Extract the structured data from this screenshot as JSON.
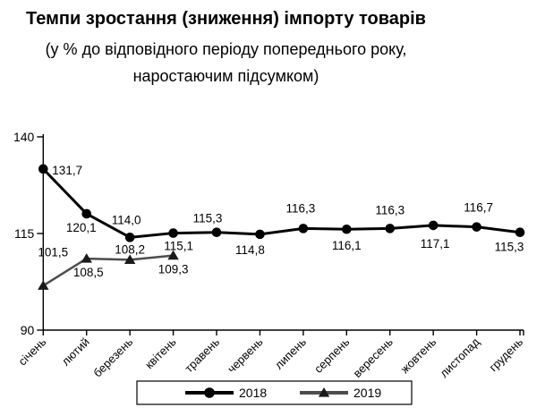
{
  "chart_data": {
    "type": "line",
    "title": "Темпи зростання (зниження) імпорту товарів",
    "subtitle_lines": [
      "(у % до відповідного періоду попереднього року,",
      "наростаючим підсумком)"
    ],
    "categories": [
      "січень",
      "лютий",
      "березень",
      "квітень",
      "травень",
      "червень",
      "липень",
      "серпень",
      "вересень",
      "жовтень",
      "листопад",
      "грудень"
    ],
    "y_axis": {
      "min": 90,
      "max": 140,
      "tick_values": [
        140,
        115,
        90
      ],
      "tick_labels": [
        "140",
        "115",
        "90"
      ]
    },
    "grid": false,
    "legend": {
      "position": "bottom",
      "entries": [
        "2018",
        "2019"
      ]
    },
    "series": [
      {
        "name": "2018",
        "color": "#000000",
        "marker": "circle",
        "marker_color": "#000000",
        "stroke_width": 3,
        "values": [
          131.7,
          120.1,
          114.0,
          115.1,
          115.3,
          114.8,
          116.3,
          116.1,
          116.3,
          117.1,
          116.7,
          115.3
        ],
        "labels": [
          "131,7",
          "120,1",
          "114,0",
          "115,1",
          "115,3",
          "114,8",
          "116,3",
          "116,1",
          "116,3",
          "117,1",
          "116,7",
          "115,3"
        ],
        "label_placement": [
          {
            "dx": 10,
            "dy": 6,
            "anchor": "start"
          },
          {
            "dx": -6,
            "dy": 20
          },
          {
            "dx": -4,
            "dy": -15
          },
          {
            "dx": 6,
            "dy": 19
          },
          {
            "dx": -10,
            "dy": -11
          },
          {
            "dx": -11,
            "dy": 22
          },
          {
            "dx": -3,
            "dy": -18
          },
          {
            "dx": 0,
            "dy": 23
          },
          {
            "dx": 0,
            "dy": -16
          },
          {
            "dx": 2,
            "dy": 25
          },
          {
            "dx": 2,
            "dy": -17
          },
          {
            "dx": -12,
            "dy": 21
          }
        ]
      },
      {
        "name": "2019",
        "color": "#4d4d4d",
        "marker": "triangle",
        "marker_color": "#1a1a1a",
        "stroke_width": 2.5,
        "values": [
          101.5,
          108.5,
          108.2,
          109.3
        ],
        "labels": [
          "101,5",
          "108,5",
          "108,2",
          "109,3"
        ],
        "label_placement": [
          {
            "dx": 11,
            "dy": -33
          },
          {
            "dx": 2,
            "dy": 20
          },
          {
            "dx": 0,
            "dy": -7
          },
          {
            "dx": 0,
            "dy": 20
          }
        ]
      }
    ]
  }
}
